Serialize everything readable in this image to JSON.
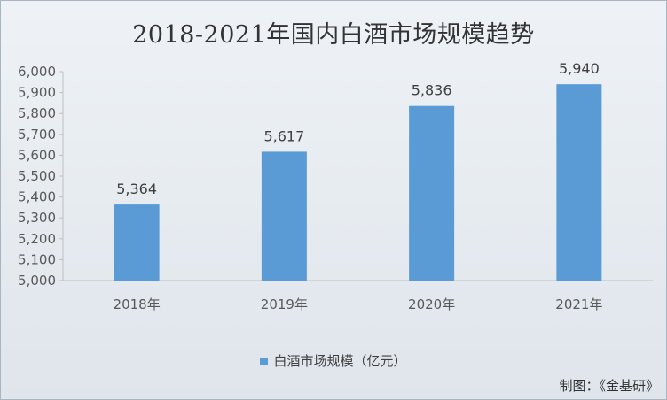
{
  "chart_data": {
    "type": "bar",
    "title": "2018-2021年国内白酒市场规模趋势",
    "categories": [
      "2018年",
      "2019年",
      "2020年",
      "2021年"
    ],
    "series": [
      {
        "name": "白酒市场规模（亿元）",
        "values": [
          5364,
          5617,
          5836,
          5940
        ]
      }
    ],
    "data_labels": [
      "5,364",
      "5,617",
      "5,836",
      "5,940"
    ],
    "ylim": [
      5000,
      6000
    ],
    "yticks": [
      "5,000",
      "5,100",
      "5,200",
      "5,300",
      "5,400",
      "5,500",
      "5,600",
      "5,700",
      "5,800",
      "5,900",
      "6,000"
    ],
    "grid": false,
    "legend_position": "bottom",
    "bar_color": "#5b9bd5"
  },
  "source_note": "制图：《金基研》"
}
